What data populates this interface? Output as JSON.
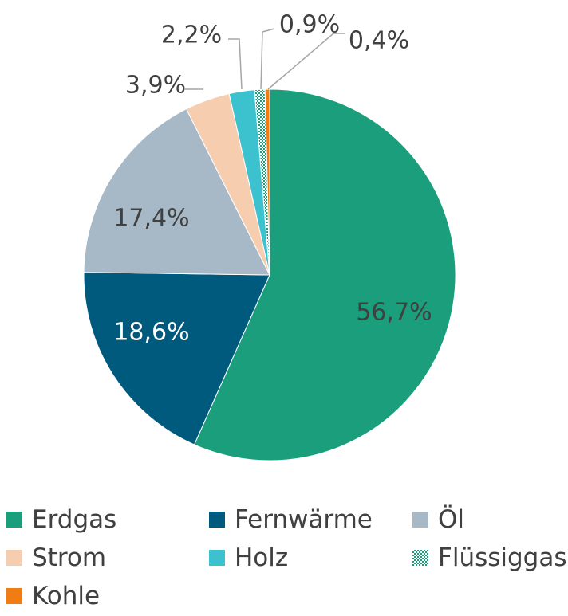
{
  "chart_data": {
    "type": "pie",
    "categories": [
      "Erdgas",
      "Fernwärme",
      "Öl",
      "Strom",
      "Holz",
      "Flüssiggas",
      "Kohle"
    ],
    "values": [
      56.7,
      18.6,
      17.4,
      3.9,
      2.2,
      0.9,
      0.4
    ],
    "labels": [
      "56,7%",
      "18,6%",
      "17,4%",
      "3,9%",
      "2,2%",
      "0,9%",
      "0,4%"
    ],
    "colors": [
      "#1b9e7c",
      "#005a7e",
      "#a7b9c6",
      "#f7cdb0",
      "#3cc2cf",
      "#1b9e7c",
      "#ef7d13"
    ],
    "patterns": [
      "solid",
      "solid",
      "solid",
      "solid",
      "solid",
      "checker",
      "solid"
    ],
    "label_colors": [
      "#404040",
      "#ffffff",
      "#404040",
      "#404040",
      "#404040",
      "#404040",
      "#404040"
    ],
    "start_angle_deg": 0,
    "direction": "clockwise",
    "legend_position": "bottom"
  }
}
